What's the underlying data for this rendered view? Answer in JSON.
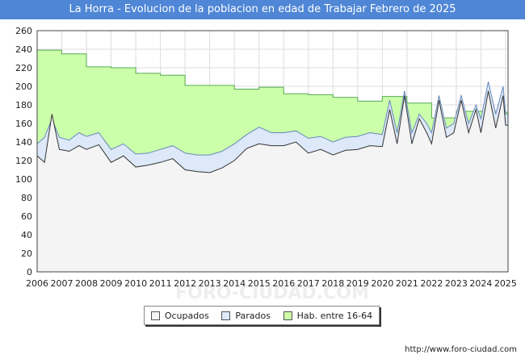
{
  "chart_data": {
    "type": "area",
    "title": "La Horra - Evolucion de la poblacion en edad de Trabajar Febrero de 2025",
    "ylim": [
      0,
      260
    ],
    "yticks": [
      0,
      20,
      40,
      60,
      80,
      100,
      120,
      140,
      160,
      180,
      200,
      220,
      240,
      260
    ],
    "xlim": [
      2006,
      2025.1
    ],
    "xticks": [
      "2006",
      "2007",
      "2008",
      "2009",
      "2010",
      "2011",
      "2012",
      "2013",
      "2014",
      "2015",
      "2016",
      "2017",
      "2018",
      "2019",
      "2020",
      "2021",
      "2022",
      "2023",
      "2024",
      "2025"
    ],
    "series": [
      {
        "name": "Hab. entre 16-64",
        "color": "#ccffaa",
        "line_color": "#55aa55",
        "step": true,
        "x": [
          2006,
          2007,
          2008,
          2009,
          2010,
          2011,
          2012,
          2013,
          2014,
          2015,
          2016,
          2017,
          2018,
          2019,
          2020,
          2021,
          2022,
          2023,
          2024,
          2025
        ],
        "values": [
          239,
          235,
          221,
          220,
          214,
          212,
          201,
          201,
          197,
          199,
          192,
          191,
          188,
          184,
          189,
          182,
          166,
          173,
          173,
          172
        ]
      },
      {
        "name": "Parados",
        "color": "#dde8f8",
        "line_color": "#6688bb",
        "x": [
          2006,
          2006.3,
          2006.6,
          2006.9,
          2007.3,
          2007.7,
          2008,
          2008.5,
          2009,
          2009.5,
          2010,
          2010.5,
          2011,
          2011.5,
          2012,
          2012.5,
          2013,
          2013.5,
          2014,
          2014.5,
          2015,
          2015.5,
          2016,
          2016.5,
          2017,
          2017.5,
          2018,
          2018.5,
          2019,
          2019.5,
          2020,
          2020.3,
          2020.6,
          2020.9,
          2021.2,
          2021.5,
          2021.8,
          2022,
          2022.3,
          2022.6,
          2022.9,
          2023.2,
          2023.5,
          2023.8,
          2024,
          2024.3,
          2024.6,
          2024.9,
          2025
        ],
        "values": [
          138,
          145,
          165,
          145,
          142,
          150,
          146,
          150,
          132,
          138,
          127,
          128,
          132,
          136,
          128,
          126,
          126,
          130,
          138,
          148,
          156,
          150,
          150,
          152,
          144,
          146,
          140,
          145,
          146,
          150,
          148,
          185,
          150,
          195,
          150,
          170,
          160,
          150,
          190,
          155,
          160,
          190,
          160,
          180,
          165,
          205,
          170,
          200,
          170
        ]
      },
      {
        "name": "Ocupados",
        "color": "#f4f4f4",
        "line_color": "#333333",
        "x": [
          2006,
          2006.3,
          2006.6,
          2006.9,
          2007.3,
          2007.7,
          2008,
          2008.5,
          2009,
          2009.5,
          2010,
          2010.5,
          2011,
          2011.5,
          2012,
          2012.5,
          2013,
          2013.5,
          2014,
          2014.5,
          2015,
          2015.5,
          2016,
          2016.5,
          2017,
          2017.5,
          2018,
          2018.5,
          2019,
          2019.5,
          2020,
          2020.3,
          2020.6,
          2020.9,
          2021.2,
          2021.5,
          2021.8,
          2022,
          2022.3,
          2022.6,
          2022.9,
          2023.2,
          2023.5,
          2023.8,
          2024,
          2024.3,
          2024.6,
          2024.9,
          2025
        ],
        "values": [
          125,
          118,
          170,
          132,
          130,
          136,
          132,
          137,
          118,
          125,
          113,
          115,
          118,
          122,
          110,
          108,
          107,
          112,
          120,
          133,
          138,
          136,
          136,
          140,
          128,
          132,
          126,
          131,
          132,
          136,
          135,
          175,
          138,
          190,
          138,
          165,
          150,
          138,
          185,
          145,
          150,
          185,
          150,
          175,
          150,
          195,
          155,
          190,
          158
        ]
      }
    ],
    "legend_position": "bottom-center",
    "grid": true
  },
  "legend": {
    "ocupados": "Ocupados",
    "parados": "Parados",
    "hab": "Hab. entre 16-64"
  },
  "footer": "http://www.foro-ciudad.com",
  "watermark": "FORO-CIUDAD.COM"
}
